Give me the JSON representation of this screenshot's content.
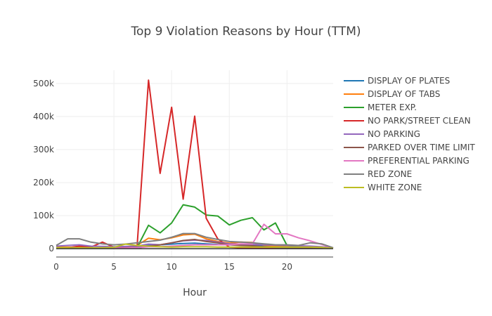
{
  "chart_data": {
    "type": "line",
    "title": "Top 9 Violation Reasons by Hour (TTM)",
    "xlabel": "Hour",
    "ylabel": "",
    "xlim": [
      0,
      24
    ],
    "ylim": [
      -25000,
      540000
    ],
    "x_ticks": [
      0,
      5,
      10,
      15,
      20
    ],
    "x_tick_labels": [
      "0",
      "5",
      "10",
      "15",
      "20"
    ],
    "y_ticks": [
      0,
      100000,
      200000,
      300000,
      400000,
      500000
    ],
    "y_tick_labels": [
      "0",
      "100k",
      "200k",
      "300k",
      "400k",
      "500k"
    ],
    "grid": true,
    "legend_position": "right",
    "x": [
      0,
      1,
      2,
      3,
      4,
      5,
      6,
      7,
      8,
      9,
      10,
      11,
      12,
      13,
      14,
      15,
      16,
      17,
      18,
      19,
      20,
      21,
      22,
      23,
      24
    ],
    "series": [
      {
        "name": "DISPLAY OF PLATES",
        "color": "#1f77b4",
        "values": [
          5000,
          4000,
          3000,
          2500,
          2000,
          2000,
          2500,
          4000,
          10000,
          12000,
          14000,
          16000,
          17000,
          15000,
          13000,
          12000,
          11000,
          10000,
          9000,
          8000,
          7000,
          6000,
          5000,
          4000,
          2000
        ]
      },
      {
        "name": "DISPLAY OF TABS",
        "color": "#ff7f0e",
        "values": [
          5000,
          5000,
          4000,
          3000,
          2500,
          2500,
          3000,
          10000,
          32000,
          27000,
          33000,
          42000,
          44000,
          30000,
          22000,
          17000,
          20000,
          19000,
          11000,
          8000,
          6000,
          4000,
          3000,
          2000,
          1000
        ]
      },
      {
        "name": "METER EXP.",
        "color": "#2ca02c",
        "values": [
          3000,
          2000,
          2000,
          1500,
          1500,
          1500,
          2000,
          3000,
          71000,
          48000,
          78000,
          133000,
          126000,
          102000,
          99000,
          72000,
          86000,
          94000,
          57000,
          78000,
          10000,
          9000,
          7000,
          5000,
          1000
        ]
      },
      {
        "name": "NO PARK/STREET CLEAN",
        "color": "#d62728",
        "values": [
          2000,
          3000,
          8000,
          5000,
          20000,
          5000,
          3000,
          3000,
          510000,
          228000,
          428000,
          150000,
          401000,
          92000,
          30000,
          5000,
          3000,
          2000,
          2000,
          1500,
          1500,
          1500,
          1000,
          1000,
          500
        ]
      },
      {
        "name": "NO PARKING",
        "color": "#9467bd",
        "values": [
          8000,
          10000,
          12000,
          8000,
          7000,
          6000,
          7000,
          8000,
          14000,
          12000,
          18000,
          24000,
          26000,
          25000,
          20000,
          15000,
          14000,
          13000,
          12000,
          11000,
          10000,
          9000,
          8000,
          6000,
          2000
        ]
      },
      {
        "name": "PARKED OVER TIME LIMIT",
        "color": "#8c564b",
        "values": [
          1000,
          1000,
          1000,
          1000,
          1000,
          1000,
          1500,
          2000,
          8000,
          12000,
          18000,
          25000,
          28000,
          22000,
          18000,
          12000,
          10000,
          9000,
          6000,
          4000,
          3000,
          2000,
          1500,
          1000,
          500
        ]
      },
      {
        "name": "PREFERENTIAL PARKING",
        "color": "#e377c2",
        "values": [
          2000,
          2000,
          2000,
          1500,
          1500,
          1500,
          2000,
          3000,
          6000,
          6000,
          8000,
          10000,
          12000,
          12000,
          12000,
          12000,
          15000,
          15000,
          74000,
          45000,
          45000,
          33000,
          24000,
          13000,
          2000
        ]
      },
      {
        "name": "RED ZONE",
        "color": "#7f7f7f",
        "values": [
          10000,
          30000,
          30000,
          20000,
          15000,
          12000,
          14000,
          18000,
          22000,
          26000,
          35000,
          46000,
          46000,
          35000,
          28000,
          22000,
          20000,
          18000,
          15000,
          12000,
          12000,
          10000,
          18000,
          15000,
          3000
        ]
      },
      {
        "name": "WHITE ZONE",
        "color": "#bcbd22",
        "values": [
          3000,
          3000,
          3000,
          3000,
          3000,
          4000,
          14000,
          10000,
          8000,
          6000,
          5000,
          6000,
          6000,
          6000,
          5000,
          5000,
          5000,
          5000,
          5000,
          5000,
          5000,
          5000,
          5000,
          4000,
          1000
        ]
      }
    ]
  }
}
